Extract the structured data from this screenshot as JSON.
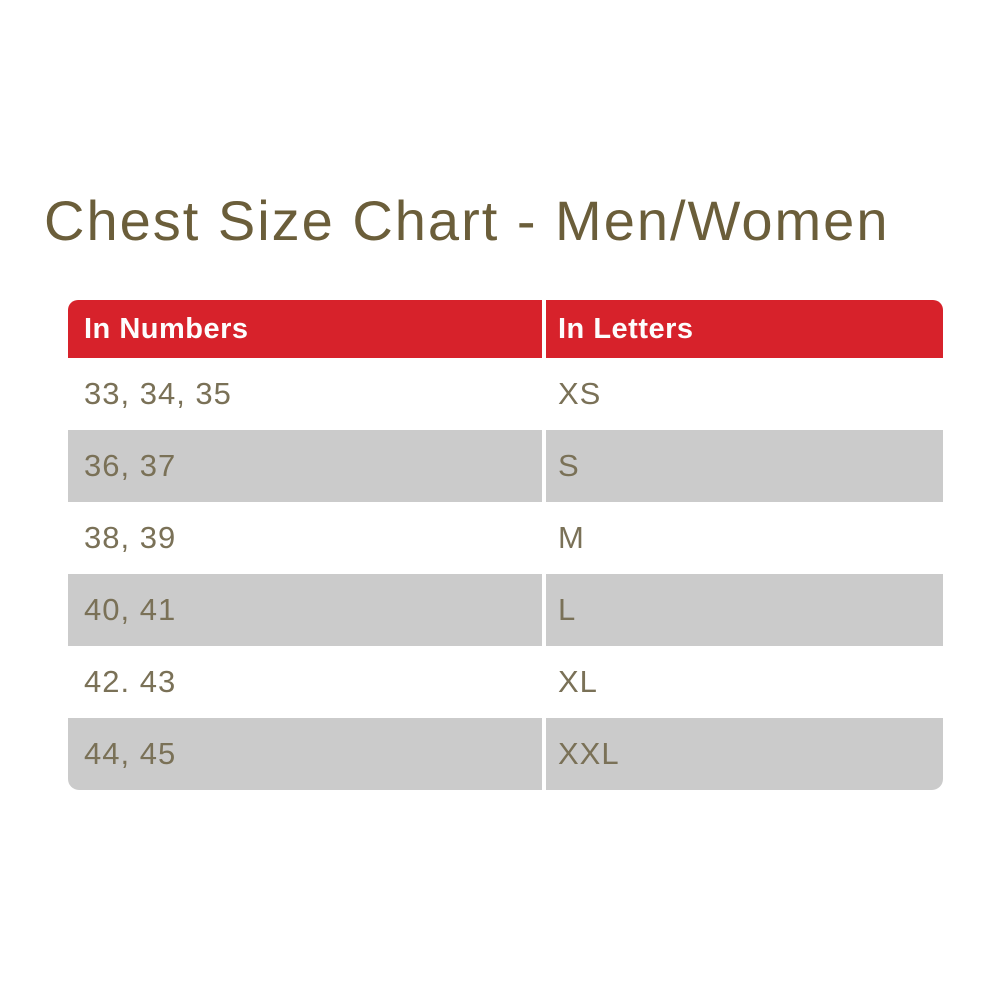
{
  "title": {
    "text": "Chest Size Chart - Men/Women"
  },
  "chart_data": {
    "type": "table",
    "title": "Chest Size Chart - Men/Women",
    "columns": [
      "In Numbers",
      "In Letters"
    ],
    "rows": [
      [
        "33, 34, 35",
        "XS"
      ],
      [
        "36, 37",
        "S"
      ],
      [
        "38, 39",
        "M"
      ],
      [
        "40, 41",
        "L"
      ],
      [
        "42. 43",
        "XL"
      ],
      [
        "44, 45",
        "XXL"
      ]
    ],
    "layout": {
      "header_position": "top",
      "alternating_row_shading": "rows 2, 4, 6 shaded"
    }
  },
  "colors": {
    "page_background": "#ffffff",
    "title_text": "#6b5e3a",
    "header_background": "#d7222b",
    "header_text": "#fdfdfd",
    "shaded_row_background": "#cbcbcb",
    "body_text": "#7a7157"
  }
}
